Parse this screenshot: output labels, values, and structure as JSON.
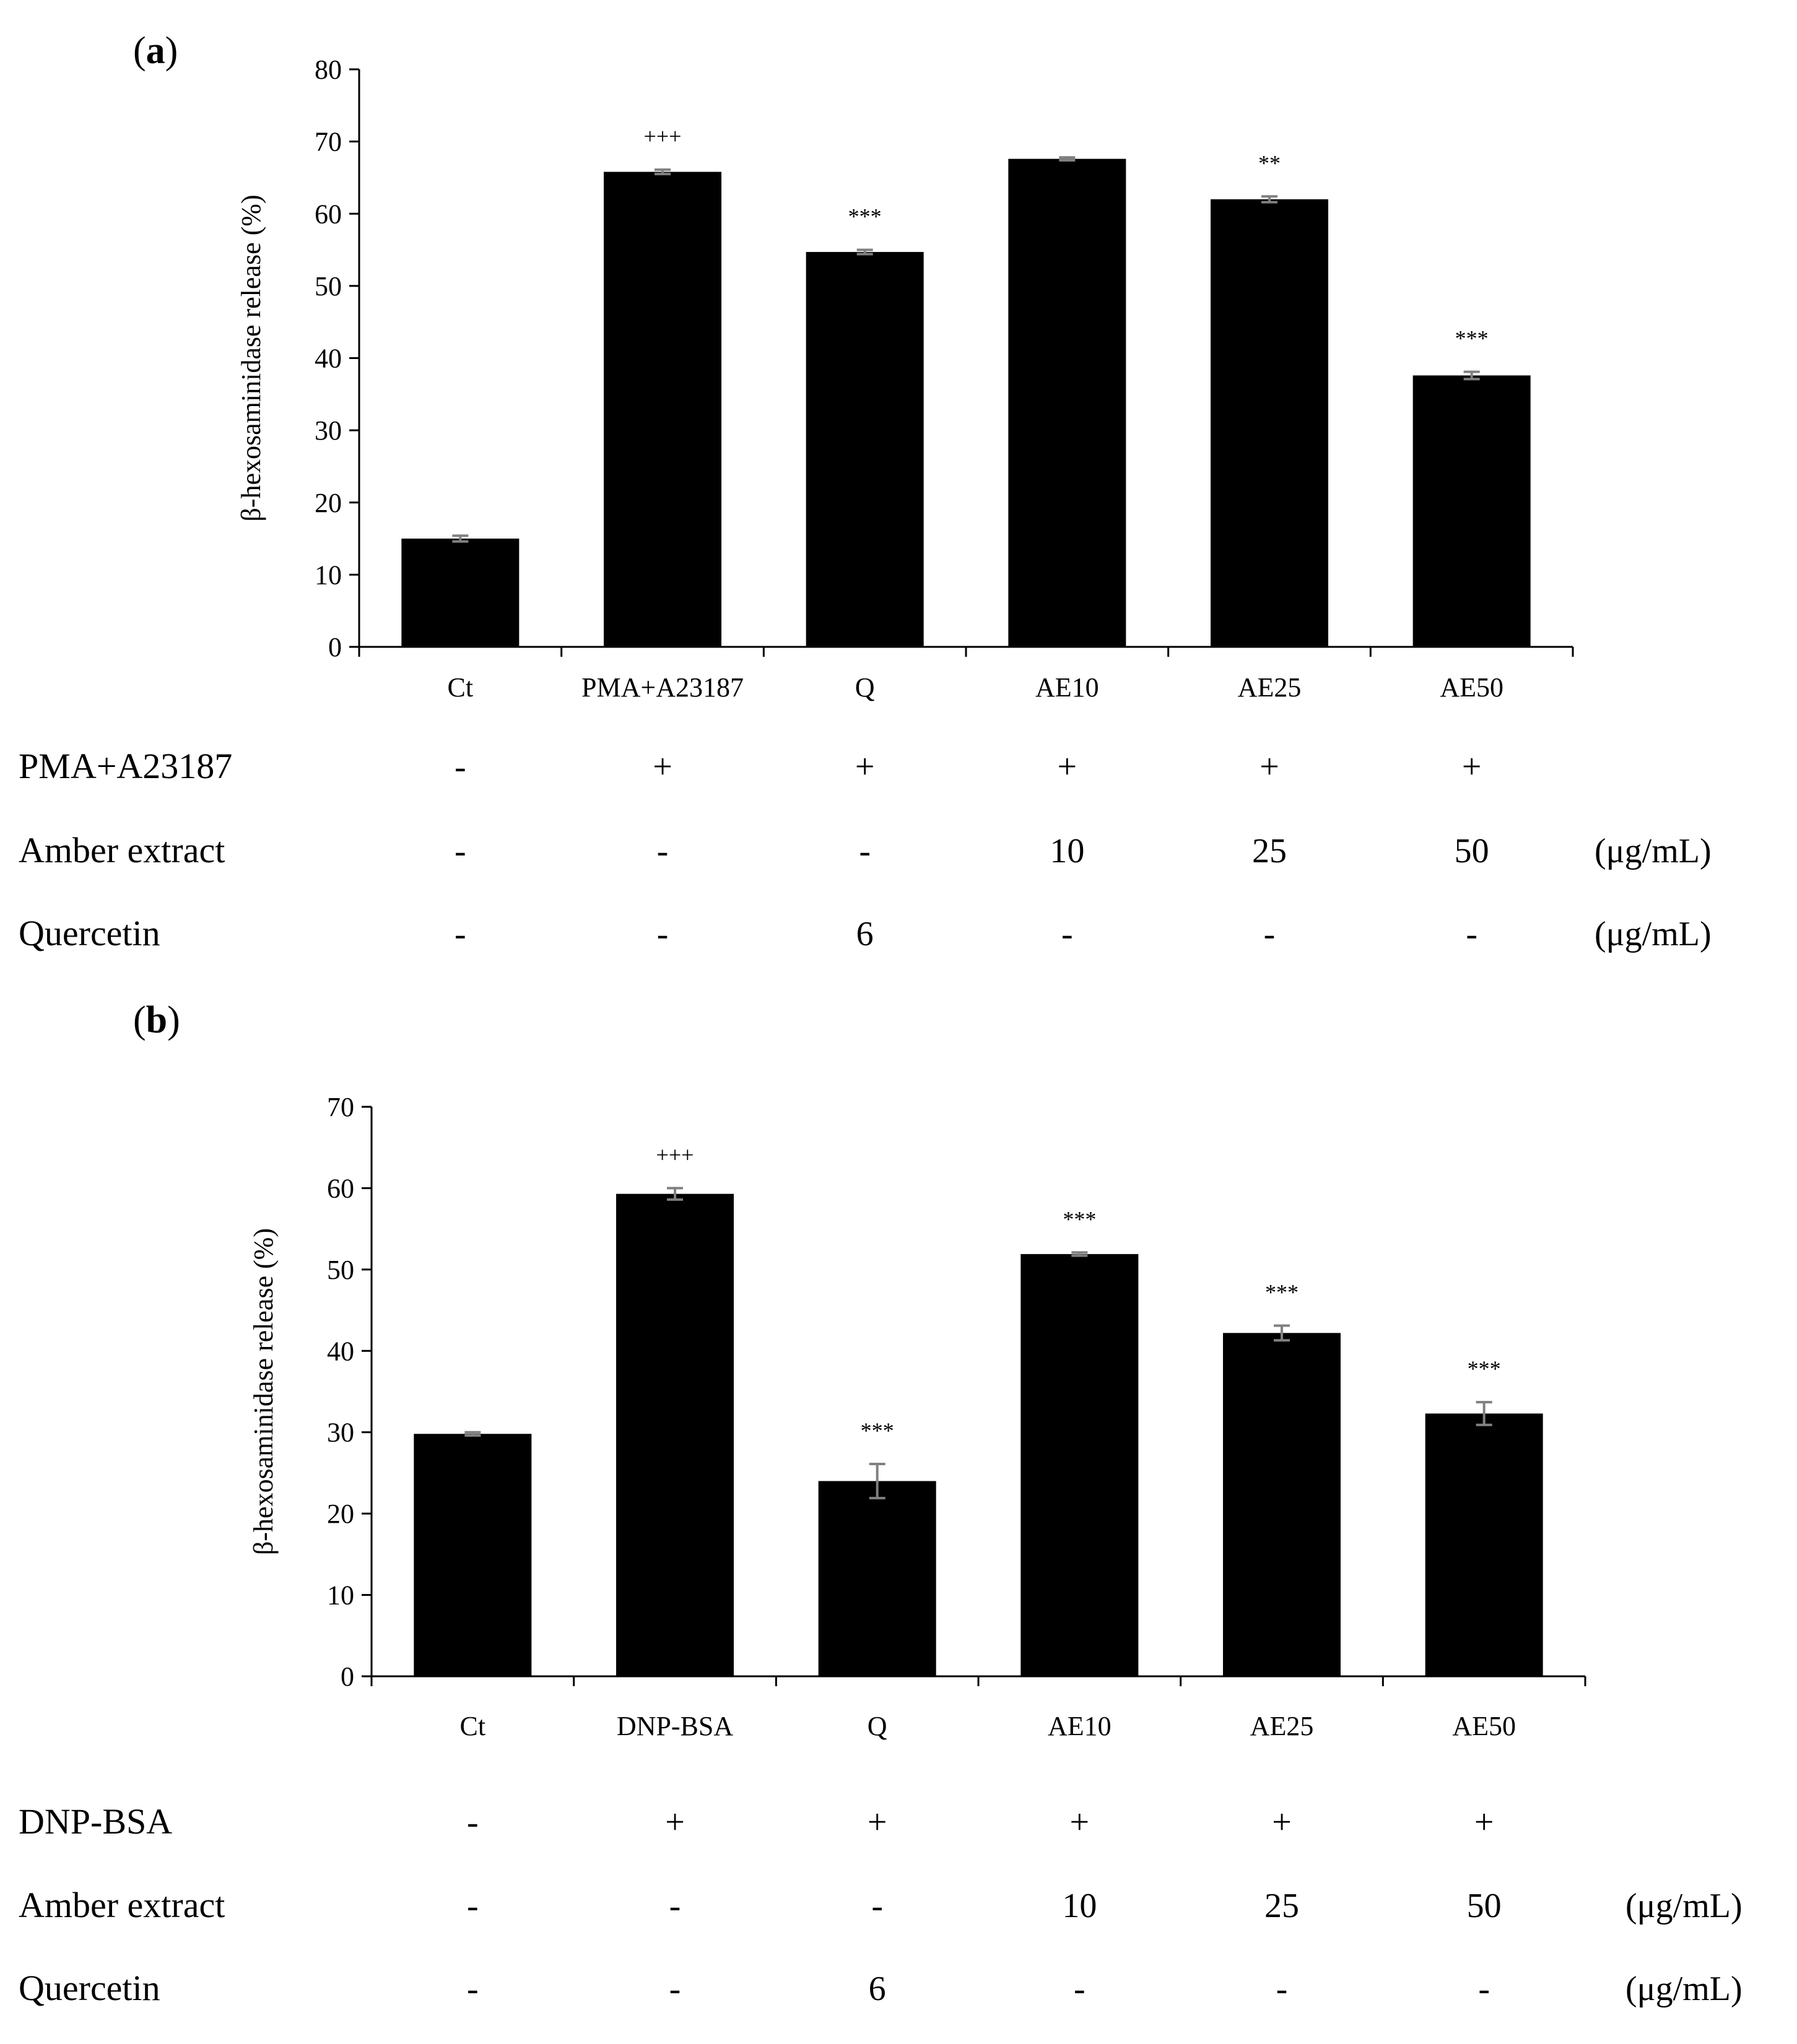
{
  "chart_data": [
    {
      "panel_label": "a",
      "type": "bar",
      "ylabel": "β-hexosaminidase release (%)",
      "ylim": [
        0,
        80
      ],
      "yticks": [
        0,
        10,
        20,
        30,
        40,
        50,
        60,
        70,
        80
      ],
      "categories": [
        "Ct",
        "PMA+A23187",
        "Q",
        "AE10",
        "AE25",
        "AE50"
      ],
      "values": [
        15.0,
        65.8,
        54.7,
        67.6,
        62.0,
        37.6
      ],
      "errors": [
        0.4,
        0.3,
        0.3,
        0.2,
        0.4,
        0.5
      ],
      "annotations": [
        "",
        "+++",
        "***",
        "",
        "**",
        "***"
      ],
      "bar_color": "#000000",
      "error_color": "#808080",
      "conditions": [
        {
          "label": "PMA+A23187",
          "values": [
            "-",
            "+",
            "+",
            "+",
            "+",
            "+"
          ],
          "unit": ""
        },
        {
          "label": "Amber extract",
          "values": [
            "-",
            "-",
            "-",
            "10",
            "25",
            "50"
          ],
          "unit": "(μg/mL)"
        },
        {
          "label": "Quercetin",
          "values": [
            "-",
            "-",
            "6",
            "-",
            "-",
            "-"
          ],
          "unit": "(μg/mL)"
        }
      ]
    },
    {
      "panel_label": "b",
      "type": "bar",
      "ylabel": "β-hexosaminidase release (%)",
      "ylim": [
        0,
        70
      ],
      "yticks": [
        0,
        10,
        20,
        30,
        40,
        50,
        60,
        70
      ],
      "categories": [
        "Ct",
        "DNP-BSA",
        "Q",
        "AE10",
        "AE25",
        "AE50"
      ],
      "values": [
        29.8,
        59.3,
        24.0,
        51.9,
        42.2,
        32.3
      ],
      "errors": [
        0.2,
        0.7,
        2.1,
        0.2,
        0.9,
        1.4
      ],
      "annotations": [
        "",
        "+++",
        "***",
        "***",
        "***",
        "***"
      ],
      "bar_color": "#000000",
      "error_color": "#808080",
      "conditions": [
        {
          "label": "DNP-BSA",
          "values": [
            "-",
            "+",
            "+",
            "+",
            "+",
            "+"
          ],
          "unit": ""
        },
        {
          "label": "Amber extract",
          "values": [
            "-",
            "-",
            "-",
            "10",
            "25",
            "50"
          ],
          "unit": "(μg/mL)"
        },
        {
          "label": "Quercetin",
          "values": [
            "-",
            "-",
            "6",
            "-",
            "-",
            "-"
          ],
          "unit": "(μg/mL)"
        }
      ]
    }
  ]
}
